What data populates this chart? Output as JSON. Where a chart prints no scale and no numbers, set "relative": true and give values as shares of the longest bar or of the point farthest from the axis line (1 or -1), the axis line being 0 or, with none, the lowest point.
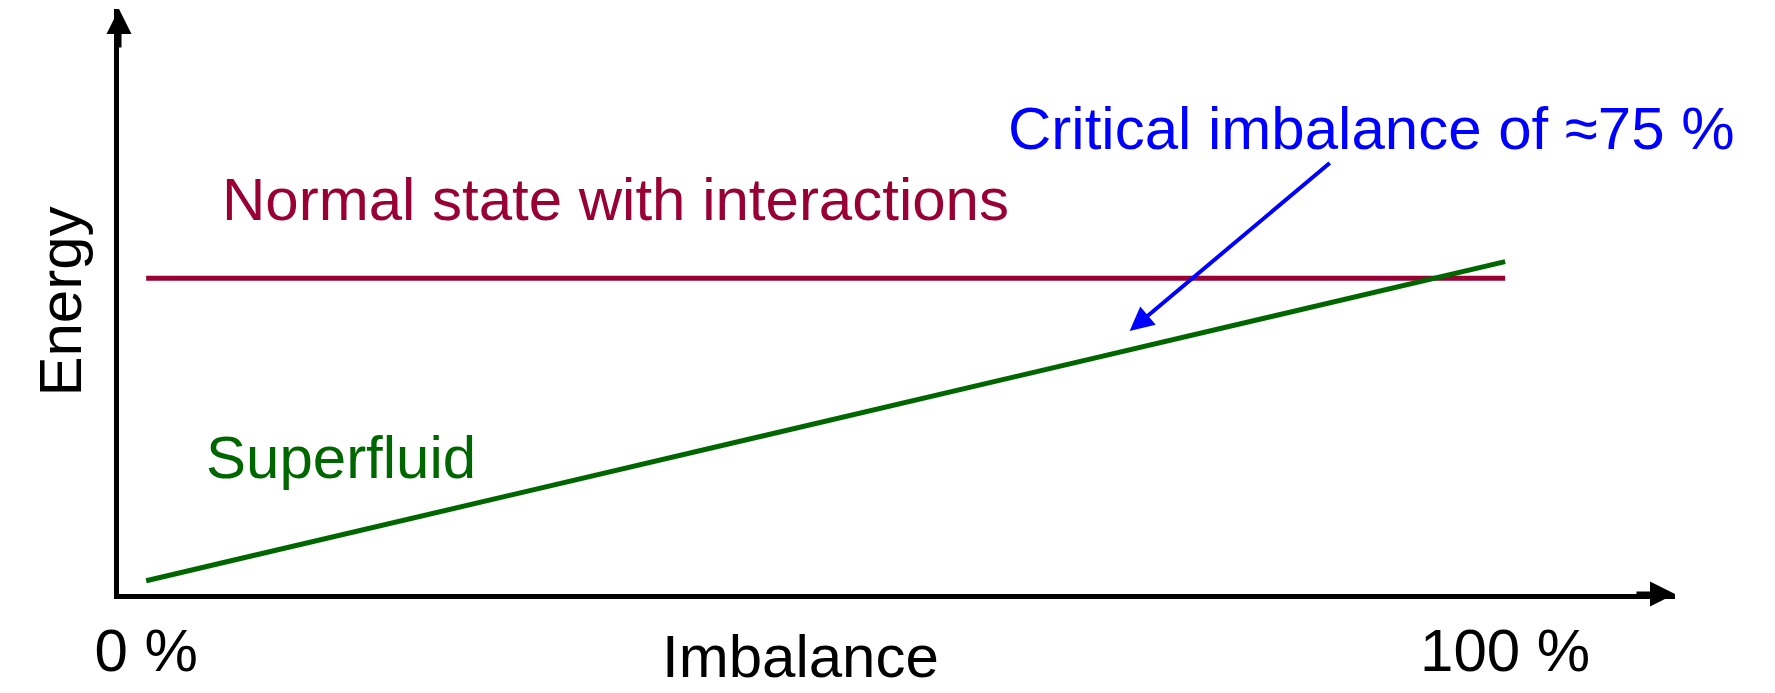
{
  "chart_data": {
    "type": "line",
    "xlabel": "Imbalance",
    "ylabel": "Energy",
    "relative": true,
    "xlim": [
      -2,
      112.5
    ],
    "xticks": [
      {
        "value": 0,
        "label": "0 %"
      },
      {
        "value": 100,
        "label": "100 %"
      }
    ],
    "tick_labels": "x",
    "x": [
      0,
      100
    ],
    "series": [
      {
        "name": "Normal state with interactions",
        "color": "#990033",
        "values": [
          0.95,
          0.95
        ]
      },
      {
        "name": "Superfluid",
        "color": "#006600",
        "values": [
          0.04,
          1
        ]
      }
    ],
    "annotations": [
      {
        "text": "Critical imbalance of ≈75 %",
        "x": 70,
        "y": 0.71
      }
    ]
  }
}
